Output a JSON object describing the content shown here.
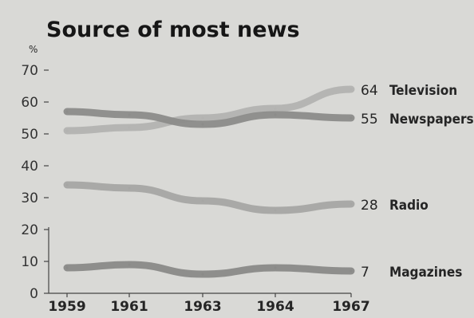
{
  "chart_data": {
    "type": "line",
    "title": "Source of most news",
    "y_unit": "%",
    "categories": [
      "1959",
      "1961",
      "1963",
      "1964",
      "1967"
    ],
    "y_ticks": [
      "0",
      "10",
      "20",
      "30",
      "40",
      "50",
      "60",
      "70"
    ],
    "ylim": [
      0,
      70
    ],
    "grid": false,
    "legend": "end-of-line labels",
    "series": [
      {
        "name": "Television",
        "values": [
          51,
          52,
          55,
          58,
          64
        ],
        "end_label": "64",
        "color": "#b3b3b1"
      },
      {
        "name": "Newspapers",
        "values": [
          57,
          56,
          53,
          56,
          55
        ],
        "end_label": "55",
        "color": "#8c8c8a"
      },
      {
        "name": "Radio",
        "values": [
          34,
          33,
          29,
          26,
          28
        ],
        "end_label": "28",
        "color": "#a6a6a4"
      },
      {
        "name": "Magazines",
        "values": [
          8,
          9,
          6,
          8,
          7
        ],
        "end_label": "7",
        "color": "#8a8a88"
      }
    ]
  }
}
